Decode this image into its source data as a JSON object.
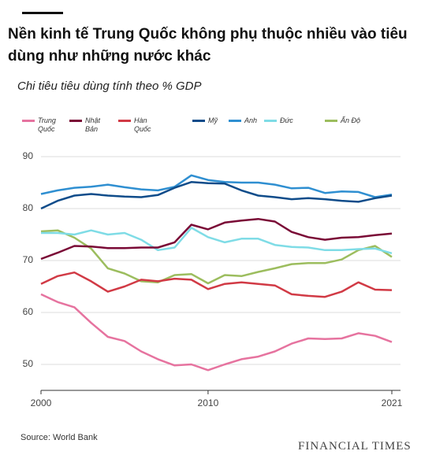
{
  "chart_data": {
    "type": "line",
    "title": "Nền kinh tế Trung Quốc không phụ thuộc nhiều vào tiêu dùng như những nước khác",
    "subtitle": "Chi tiêu tiêu dùng tính theo % GDP",
    "source": "Source: World Bank",
    "logo": "FINANCIAL TIMES",
    "x": [
      2000,
      2001,
      2002,
      2003,
      2004,
      2005,
      2006,
      2007,
      2008,
      2009,
      2010,
      2011,
      2012,
      2013,
      2014,
      2015,
      2016,
      2017,
      2018,
      2019,
      2020,
      2021
    ],
    "xlim": [
      2000,
      2021
    ],
    "xticks": [
      2000,
      2010,
      2021
    ],
    "ylim": [
      45,
      90
    ],
    "yticks": [
      50,
      60,
      70,
      80,
      90
    ],
    "grid": true,
    "series": [
      {
        "name": "Trung Quốc",
        "color": "#e6739f",
        "values": [
          63.5,
          62,
          61,
          58,
          55.3,
          54.5,
          52.5,
          51,
          49.8,
          50,
          48.9,
          50,
          51,
          51.5,
          52.5,
          54,
          55,
          54.9,
          55,
          56,
          55.5,
          54.3
        ]
      },
      {
        "name": "Nhật Bản",
        "color": "#7a0a36",
        "values": [
          70.3,
          71.5,
          72.8,
          72.7,
          72.4,
          72.4,
          72.5,
          72.5,
          73.5,
          76.9,
          76,
          77.3,
          77.7,
          78,
          77.5,
          75.5,
          74.5,
          74,
          74.4,
          74.5,
          74.9,
          75.2
        ]
      },
      {
        "name": "Hàn Quốc",
        "color": "#d13a45",
        "values": [
          65.5,
          67,
          67.7,
          66,
          64,
          65,
          66.3,
          66,
          66.5,
          66.3,
          64.5,
          65.5,
          65.8,
          65.5,
          65.2,
          63.5,
          63.2,
          63,
          64,
          65.8,
          64.4,
          64.3
        ]
      },
      {
        "name": "Mỹ",
        "color": "#0f4c8a",
        "values": [
          80,
          81.5,
          82.5,
          82.8,
          82.5,
          82.3,
          82.2,
          82.6,
          84,
          85.1,
          84.9,
          84.8,
          83.5,
          82.5,
          82.2,
          81.8,
          82,
          81.8,
          81.5,
          81.3,
          82,
          82.5
        ]
      },
      {
        "name": "Anh",
        "color": "#2f8fd1",
        "values": [
          82.8,
          83.5,
          84,
          84.2,
          84.6,
          84.1,
          83.7,
          83.5,
          84.2,
          86.4,
          85.5,
          85.1,
          85,
          85,
          84.6,
          83.9,
          84,
          83,
          83.3,
          83.2,
          82.2,
          82.7
        ]
      },
      {
        "name": "Đức",
        "color": "#7fdce6",
        "values": [
          75.3,
          75.3,
          75,
          75.8,
          75,
          75.3,
          74,
          72,
          72.5,
          76.3,
          74.5,
          73.5,
          74.2,
          74.2,
          73,
          72.6,
          72.5,
          72,
          72,
          72.2,
          72.3,
          71.4
        ]
      },
      {
        "name": "Ấn Độ",
        "color": "#9cbd5e",
        "values": [
          75.6,
          75.8,
          74.4,
          72.3,
          68.5,
          67.5,
          66,
          65.8,
          67.2,
          67.4,
          65.6,
          67.2,
          67,
          67.8,
          68.5,
          69.3,
          69.5,
          69.5,
          70.2,
          72,
          72.8,
          70.7
        ]
      }
    ]
  }
}
